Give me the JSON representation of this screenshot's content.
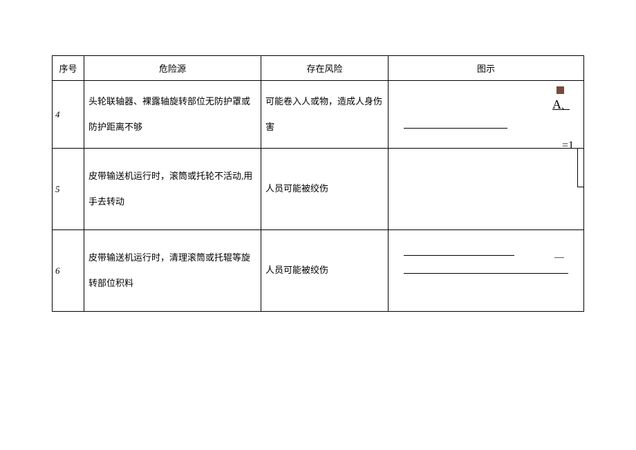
{
  "table": {
    "columns": [
      "序号",
      "危险源",
      "存在风险",
      "图示"
    ],
    "border_color": "#000000",
    "background_color": "#ffffff",
    "font_size": 13,
    "rows": [
      {
        "seq": "4",
        "hazard": "头轮联轴器、裸露轴旋转部位无防护罩或防护距离不够",
        "risk": "可能卷入人或物，造成人身伤害",
        "illus": {
          "square_color": "#7a4a3a",
          "label_A": "A",
          "label_A_suffix": "、",
          "eq_text": "=1"
        }
      },
      {
        "seq": "5",
        "hazard": "皮带输送机运行时，滚筒或托轮不活动,用手去转动",
        "risk": "人员可能被绞伤",
        "illus": {}
      },
      {
        "seq": "6",
        "hazard": "皮带输送机运行时，清理滚筒或托辊等旋转部位积料",
        "risk": "人员可能被绞伤",
        "illus": {
          "dash": "—"
        }
      }
    ]
  }
}
